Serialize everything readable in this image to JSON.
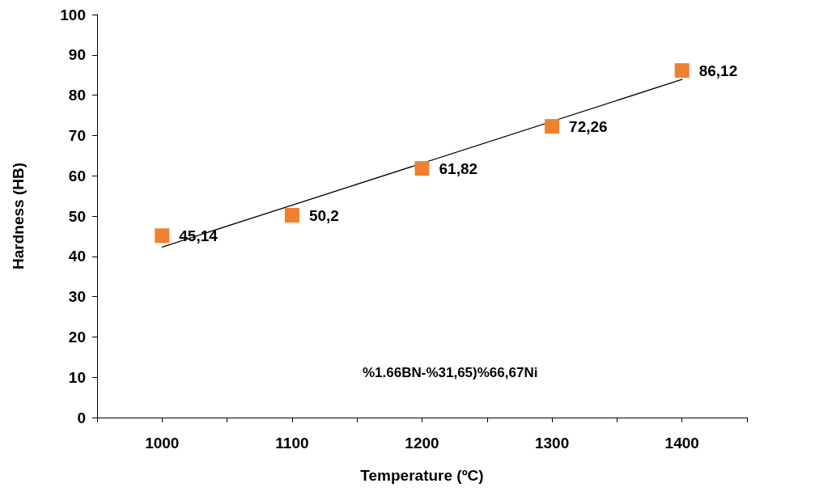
{
  "chart_data": {
    "type": "scatter",
    "xlabel": "Temperature (ºC)",
    "ylabel": "Hardness (HB)",
    "x": [
      1000,
      1100,
      1200,
      1300,
      1400
    ],
    "series": [
      {
        "color": "#f08030",
        "values": [
          45.14,
          50.2,
          61.82,
          72.26,
          86.12
        ],
        "value_labels": [
          "45,14",
          "50,2",
          "61,82",
          "72,26",
          "86,12"
        ],
        "marker": "square"
      },
      {
        "type": "line",
        "color": "#000000",
        "x": [
          1000,
          1400
        ],
        "values": [
          42.3,
          83.9
        ],
        "marker": "none"
      }
    ],
    "xlim": [
      950,
      1450
    ],
    "xticks": [
      {
        "value": 950,
        "label": null
      },
      1000,
      {
        "value": 1050,
        "label": null
      },
      1100,
      {
        "value": 1150,
        "label": null
      },
      1200,
      {
        "value": 1250,
        "label": null
      },
      1300,
      {
        "value": 1350,
        "label": null
      },
      1400,
      {
        "value": 1450,
        "label": null
      }
    ],
    "ylim": [
      0,
      100
    ],
    "yticks": [
      0,
      10,
      20,
      30,
      40,
      50,
      60,
      70,
      80,
      90,
      100
    ],
    "grid": false,
    "annotations": [
      "%1.66BN-%31,65)%66,67Ni"
    ]
  }
}
